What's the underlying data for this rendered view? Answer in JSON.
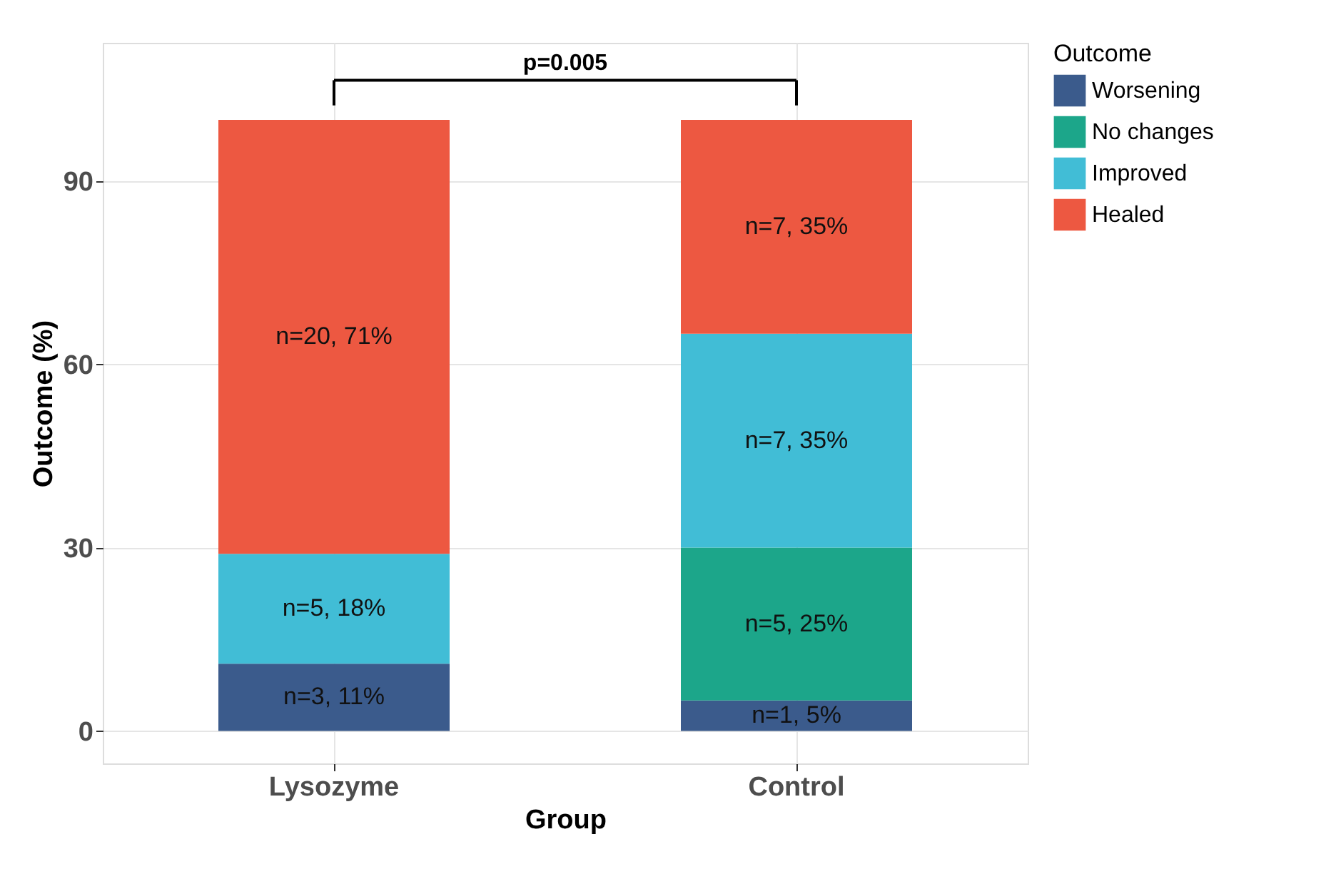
{
  "chart_data": {
    "type": "bar",
    "stacked": true,
    "xlabel": "Group",
    "ylabel": "Outcome (%)",
    "legend_title": "Outcome",
    "categories": [
      "Lysozyme",
      "Control"
    ],
    "series": [
      {
        "name": "Worsening",
        "color": "#3b5b8c",
        "values": [
          11,
          5
        ],
        "value_labels": [
          "n=3, 11%",
          "n=1, 5%"
        ]
      },
      {
        "name": "No changes",
        "color": "#1ca68a",
        "values": [
          0,
          25
        ],
        "value_labels": [
          null,
          "n=5, 25%"
        ]
      },
      {
        "name": "Improved",
        "color": "#41bdd6",
        "values": [
          18,
          35
        ],
        "value_labels": [
          "n=5, 18%",
          "n=7, 35%"
        ]
      },
      {
        "name": "Healed",
        "color": "#ed5841",
        "values": [
          71,
          35
        ],
        "value_labels": [
          "n=20, 71%",
          "n=7, 35%"
        ]
      }
    ],
    "ylim": [
      -5.3,
      112.6
    ],
    "yticks": [
      0,
      30,
      60,
      90
    ],
    "grid": true,
    "legend": "right",
    "annotations": [
      "p=0.005"
    ]
  }
}
